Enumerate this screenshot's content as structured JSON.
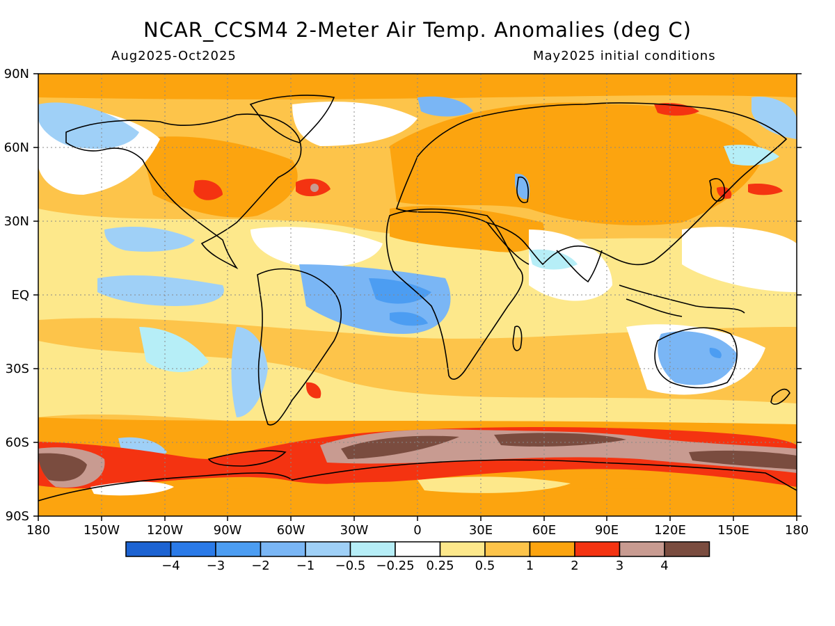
{
  "title": "NCAR_CCSM4 2-Meter Air Temp. Anomalies (deg C)",
  "subtitle_left": "Aug2025-Oct2025",
  "subtitle_right": "May2025 initial conditions",
  "lat_labels": [
    "90N",
    "60N",
    "30N",
    "EQ",
    "30S",
    "60S",
    "90S"
  ],
  "lon_labels": [
    "180",
    "150W",
    "120W",
    "90W",
    "60W",
    "30W",
    "0",
    "30E",
    "60E",
    "90E",
    "120E",
    "150E",
    "180"
  ],
  "colorbar": {
    "colors": [
      "#1c63d2",
      "#2a7ae8",
      "#4c9df2",
      "#7ab6f5",
      "#9fd0f7",
      "#b6eef7",
      "#ffffff",
      "#fde88b",
      "#fdc44a",
      "#fca40f",
      "#f43311",
      "#c89b91",
      "#7a4c3f"
    ],
    "tick_labels": [
      "−4",
      "−3",
      "−2",
      "−1",
      "−0.5",
      "−0.25",
      "0.25",
      "0.5",
      "1",
      "2",
      "3",
      "4"
    ]
  },
  "map": {
    "region": "Global 90S–90N, 180–180",
    "variable": "2-Meter Air Temperature Anomaly",
    "units": "deg C"
  }
}
